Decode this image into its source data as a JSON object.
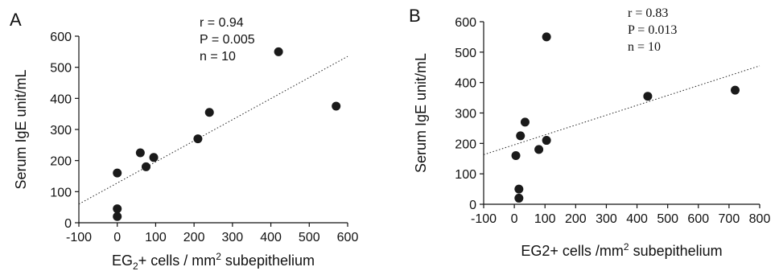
{
  "chart_data": [
    {
      "type": "scatter",
      "panel_label": "A",
      "ylabel": "Serum IgE unit/mL",
      "xlabel_parts": [
        "EG",
        "2",
        "+ cells / mm",
        "2",
        " subepithelium"
      ],
      "xlim": [
        -100,
        600
      ],
      "ylim": [
        0,
        600
      ],
      "xticks": [
        -100,
        0,
        100,
        200,
        300,
        400,
        500,
        600
      ],
      "yticks": [
        0,
        100,
        200,
        300,
        400,
        500,
        600
      ],
      "grid": false,
      "stats": [
        "r = 0.94",
        "P = 0.005",
        "n = 10"
      ],
      "points": [
        {
          "x": 0,
          "y": 20
        },
        {
          "x": 0,
          "y": 45
        },
        {
          "x": 0,
          "y": 160
        },
        {
          "x": 60,
          "y": 225
        },
        {
          "x": 75,
          "y": 180
        },
        {
          "x": 95,
          "y": 210
        },
        {
          "x": 210,
          "y": 270
        },
        {
          "x": 240,
          "y": 355
        },
        {
          "x": 420,
          "y": 550
        },
        {
          "x": 570,
          "y": 375
        }
      ],
      "trendline": {
        "style": "dotted",
        "x": [
          -100,
          600
        ],
        "y": [
          60,
          535
        ]
      },
      "point_color": "#1a1a1a"
    },
    {
      "type": "scatter",
      "panel_label": "B",
      "ylabel": "Serum IgE unit/mL",
      "xlabel_parts": [
        "EG2+ cells /mm",
        "2",
        " subepithelium"
      ],
      "xlim": [
        -100,
        800
      ],
      "ylim": [
        0,
        600
      ],
      "xticks": [
        -100,
        0,
        100,
        200,
        300,
        400,
        500,
        600,
        700,
        800
      ],
      "yticks": [
        0,
        100,
        200,
        300,
        400,
        500,
        600
      ],
      "grid": false,
      "stats": [
        "r = 0.83",
        "P = 0.013",
        "n = 10"
      ],
      "points": [
        {
          "x": 15,
          "y": 20
        },
        {
          "x": 15,
          "y": 50
        },
        {
          "x": 5,
          "y": 160
        },
        {
          "x": 20,
          "y": 225
        },
        {
          "x": 35,
          "y": 270
        },
        {
          "x": 80,
          "y": 180
        },
        {
          "x": 105,
          "y": 210
        },
        {
          "x": 105,
          "y": 550
        },
        {
          "x": 435,
          "y": 355
        },
        {
          "x": 720,
          "y": 375
        }
      ],
      "trendline": {
        "style": "dotted",
        "x": [
          -100,
          800
        ],
        "y": [
          163,
          455
        ]
      },
      "point_color": "#1a1a1a"
    }
  ]
}
